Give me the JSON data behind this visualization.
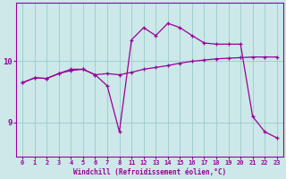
{
  "xlabel": "Windchill (Refroidissement éolien,°C)",
  "bg_color": "#cce8e8",
  "line_color": "#990099",
  "grid_color": "#99cccc",
  "tick_labels": [
    "0",
    "1",
    "2",
    "3",
    "4",
    "5",
    "6",
    "7",
    "8",
    "11",
    "12",
    "13",
    "14",
    "15",
    "16",
    "17",
    "18",
    "19",
    "20",
    "21",
    "22",
    "23"
  ],
  "curve1_y": [
    9.65,
    9.73,
    9.72,
    9.8,
    9.85,
    9.87,
    9.78,
    9.6,
    8.85,
    10.35,
    10.55,
    10.42,
    10.62,
    10.55,
    10.42,
    10.3,
    10.28,
    10.28,
    10.28,
    9.1,
    8.85,
    8.75
  ],
  "curve2_y": [
    9.65,
    9.73,
    9.72,
    9.8,
    9.87,
    9.87,
    9.78,
    9.8,
    9.78,
    9.82,
    9.87,
    9.9,
    9.93,
    9.97,
    10.0,
    10.02,
    10.04,
    10.05,
    10.06,
    10.07,
    10.07,
    10.07
  ],
  "yticks": [
    9,
    10
  ],
  "ylim": [
    8.45,
    10.95
  ],
  "xlim": [
    -0.5,
    21.5
  ]
}
